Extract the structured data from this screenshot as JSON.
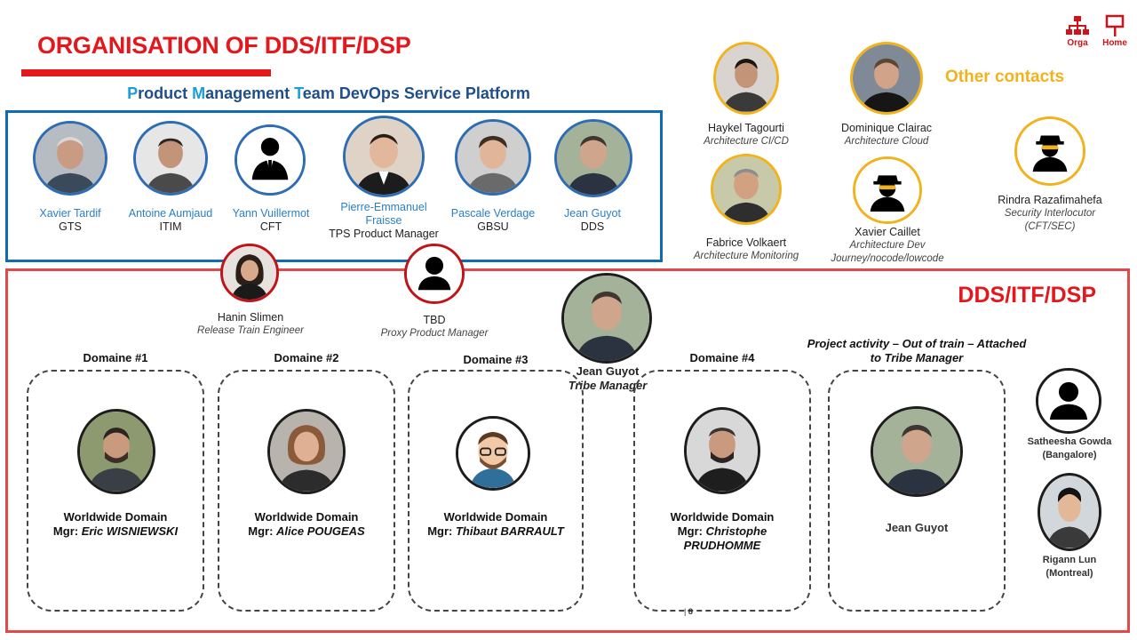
{
  "header": {
    "title": "ORGANISATION OF DDS/ITF/DSP"
  },
  "nav": {
    "orga_label": "Orga",
    "home_label": "Home"
  },
  "pm_team": {
    "title_parts": [
      "P",
      "roduct ",
      "M",
      "anagement ",
      "T",
      "eam DevOps Service Platform"
    ],
    "members": [
      {
        "name": "Xavier Tardif",
        "role": "GTS"
      },
      {
        "name": "Antoine Aumjaud",
        "role": "ITIM"
      },
      {
        "name": "Yann Vuillermot",
        "role": "CFT"
      },
      {
        "name": "Pierre-Emmanuel",
        "name2": "Fraisse",
        "role": "TPS Product Manager"
      },
      {
        "name": "Pascale Verdage",
        "role": "GBSU"
      },
      {
        "name": "Jean Guyot",
        "role": "DDS"
      }
    ]
  },
  "other_contacts": {
    "label": "Other contacts",
    "people": [
      {
        "name": "Haykel Tagourti",
        "role": "Architecture CI/CD"
      },
      {
        "name": "Dominique Clairac",
        "role": "Architecture Cloud"
      },
      {
        "name": "Fabrice Volkaert",
        "role": "Architecture Monitoring"
      },
      {
        "name": "Xavier Caillet",
        "role": "Architecture Dev",
        "role2": "Journey/nocode/lowcode"
      },
      {
        "name": "Rindra Razafimahefa",
        "role": "Security Interlocutor",
        "role2": "(CFT/SEC)"
      }
    ]
  },
  "dds": {
    "label": "DDS/ITF/DSP",
    "rte": {
      "name": "Hanin Slimen",
      "role": "Release Train Engineer"
    },
    "ppm": {
      "name": "TBD",
      "role": "Proxy Product Manager"
    },
    "tribe": {
      "name": "Jean Guyot",
      "role": "Tribe Manager"
    },
    "domains": [
      {
        "title": "Domaine #1",
        "line1": "Worldwide Domain",
        "mgr_prefix": "Mgr: ",
        "mgr": "Eric WISNIEWSKI"
      },
      {
        "title": "Domaine #2",
        "line1": "Worldwide Domain",
        "mgr_prefix": "Mgr: ",
        "mgr": "Alice POUGEAS"
      },
      {
        "title": "Domaine #3",
        "line1": "Worldwide Domain",
        "mgr_prefix": "Mgr: ",
        "mgr": "Thibaut BARRAULT"
      },
      {
        "title": "Domaine #4",
        "line1": "Worldwide Domain",
        "mgr_prefix": "Mgr: ",
        "mgr": "Christophe",
        "mgr2": "PRUDHOMME"
      }
    ],
    "project": {
      "title_line1": "Project activity – Out of train – Attached",
      "title_line2": "to Tribe Manager",
      "name": "Jean Guyot"
    },
    "side": [
      {
        "name": "Satheesha Gowda",
        "location": "(Bangalore)"
      },
      {
        "name": "Rigann Lun",
        "location": "(Montreal)"
      }
    ]
  },
  "footer": {
    "page_number": "8"
  },
  "colors": {
    "red": "#e4171d",
    "blue": "#0f6bb3",
    "yellow": "#f2b21c"
  }
}
